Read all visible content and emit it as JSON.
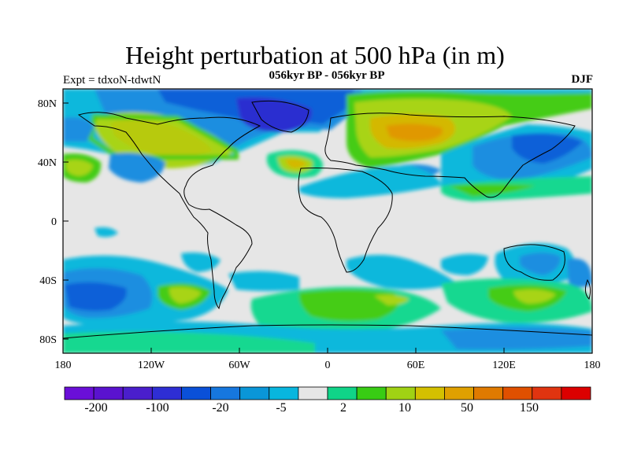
{
  "title": "Height perturbation at 500 hPa (in m)",
  "subtitle": "056kyr BP - 056kyr BP",
  "left_label": "Expt = tdxoN-tdwtN",
  "right_label": "DJF",
  "lat_ticks": [
    "80N",
    "40N",
    "0",
    "40S",
    "80S"
  ],
  "lon_ticks": [
    "180",
    "120W",
    "60W",
    "0",
    "60E",
    "120E",
    "180"
  ],
  "colorbar": {
    "colors": [
      "#6a0fd8",
      "#5a12cf",
      "#4a1ecc",
      "#2e2ed4",
      "#0a50d8",
      "#1677de",
      "#0a96d8",
      "#08b6de",
      "#e6e6e6",
      "#10d488",
      "#38cc14",
      "#a0d214",
      "#d4c000",
      "#e0a000",
      "#e07a00",
      "#e05000",
      "#e03410",
      "#dc0000"
    ],
    "labels": [
      "-200",
      "-100",
      "-20",
      "-5",
      "2",
      "10",
      "50",
      "150"
    ]
  },
  "legend_colors": {
    "neg_deep": "#2a2ed0",
    "neg_strong": "#1060d8",
    "neg_mid": "#1a8ee0",
    "neg_weak": "#0ab8dc",
    "near_zero": "#e6e6e6",
    "pos_weak": "#18d890",
    "pos_mid": "#44cc18",
    "pos_strong": "#a8d418",
    "pos_high": "#d4b800",
    "pos_peak": "#e09800"
  }
}
